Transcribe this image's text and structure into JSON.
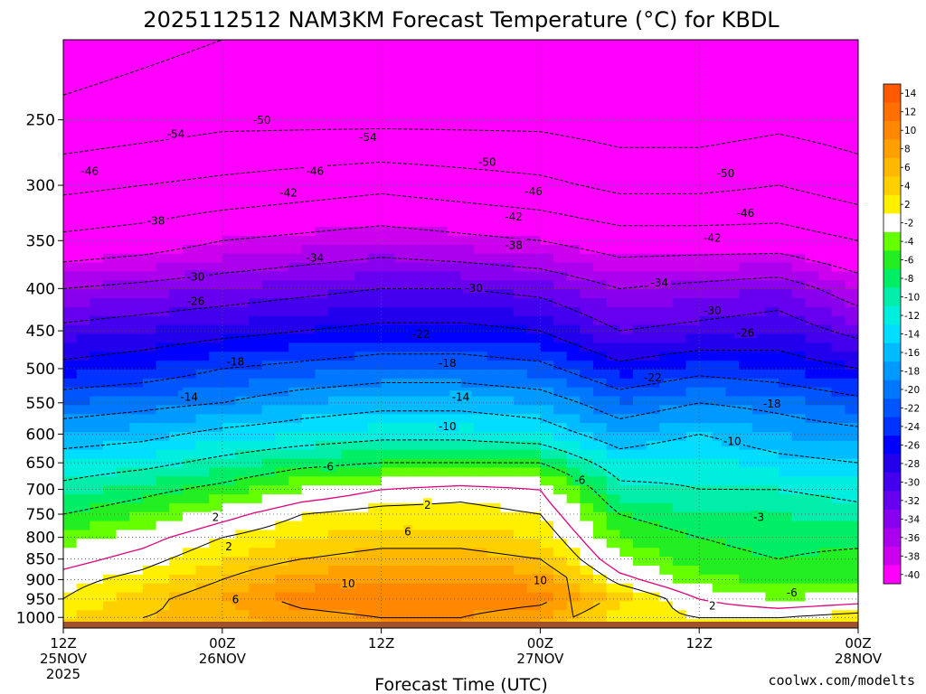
{
  "chart_data": {
    "type": "heatmap",
    "title": "2025112512 NAM3KM Forecast Temperature (°C) for KBDL",
    "xlabel": "Forecast Time (UTC)",
    "ylabel": "",
    "x_range_hours": [
      0,
      60
    ],
    "y_range_hpa": [
      1030,
      200
    ],
    "y_ticks": [
      250,
      300,
      350,
      400,
      450,
      500,
      550,
      600,
      650,
      700,
      750,
      800,
      850,
      900,
      950,
      1000
    ],
    "x_ticks": [
      {
        "hour": 0,
        "lines": [
          "12Z",
          "25NOV",
          "2025"
        ]
      },
      {
        "hour": 12,
        "lines": [
          "00Z",
          "26NOV"
        ]
      },
      {
        "hour": 24,
        "lines": [
          "12Z",
          ""
        ]
      },
      {
        "hour": 36,
        "lines": [
          "00Z",
          "27NOV"
        ]
      },
      {
        "hour": 48,
        "lines": [
          "12Z",
          ""
        ]
      },
      {
        "hour": 60,
        "lines": [
          "00Z",
          "28NOV"
        ]
      }
    ],
    "colorbar_labels": [
      "14",
      "12",
      "10",
      "8",
      "6",
      "4",
      "2",
      "-2",
      "-4",
      "-6",
      "-8",
      "-10",
      "-12",
      "-14",
      "-16",
      "-18",
      "-20",
      "-22",
      "-24",
      "-26",
      "-28",
      "-30",
      "-32",
      "-34",
      "-36",
      "-38",
      "-40"
    ],
    "colorbar_colors": [
      "#FF5A00",
      "#FF7000",
      "#FF8800",
      "#FFA000",
      "#FFB800",
      "#FFD000",
      "#FFF000",
      "#FFFFFF",
      "#66FF00",
      "#22EE22",
      "#00EE66",
      "#00EEAA",
      "#00EEDD",
      "#00DDFF",
      "#00BBFF",
      "#0099FF",
      "#0077FF",
      "#0055FF",
      "#0033FF",
      "#0000FF",
      "#2200EE",
      "#4400EE",
      "#6600EE",
      "#8800EE",
      "#AA00EE",
      "#CC00EE",
      "#FF00FF"
    ],
    "levels": [
      1000,
      950,
      900,
      850,
      800,
      750,
      700,
      650,
      600,
      550,
      500,
      450,
      400,
      350,
      300,
      250,
      200
    ],
    "temperature_at_hours": {
      "hours": [
        0,
        6,
        12,
        18,
        24,
        30,
        36,
        42,
        48,
        54,
        60
      ],
      "profiles": [
        [
          4,
          2,
          1,
          -1,
          -3,
          -6,
          -9,
          -12,
          -16,
          -20,
          -25,
          -29,
          -34,
          -41,
          -47,
          -53,
          -56
        ],
        [
          6,
          5,
          3,
          1,
          -1,
          -4,
          -7,
          -11,
          -15,
          -19,
          -24,
          -28,
          -33,
          -40,
          -46,
          -52,
          -55
        ],
        [
          7,
          8,
          6,
          4,
          2,
          -1,
          -5,
          -9,
          -13,
          -18,
          -22,
          -27,
          -32,
          -38,
          -45,
          -51,
          -54
        ],
        [
          9,
          11,
          9,
          6,
          4,
          2,
          -2,
          -7,
          -12,
          -16,
          -21,
          -26,
          -31,
          -37,
          -44,
          -51,
          -54
        ],
        [
          10,
          12,
          10,
          7,
          5,
          3,
          0,
          -6,
          -11,
          -15,
          -20,
          -25,
          -30,
          -36,
          -43,
          -51,
          -53
        ],
        [
          10,
          12,
          10,
          7,
          5,
          3,
          1,
          -6,
          -11,
          -15,
          -20,
          -25,
          -30,
          -37,
          -44,
          -51,
          -53
        ],
        [
          8,
          11,
          9,
          6,
          4,
          2,
          0,
          -6,
          -12,
          -16,
          -21,
          -26,
          -31,
          -38,
          -45,
          -51,
          -53
        ],
        [
          3,
          5,
          1,
          -2,
          -4,
          -6,
          -9,
          -12,
          -16,
          -20,
          -25,
          -30,
          -34,
          -40,
          -47,
          -52,
          -54
        ],
        [
          2,
          0,
          -3,
          -5,
          -6,
          -8,
          -10,
          -11,
          -14,
          -18,
          -23,
          -29,
          -33,
          -40,
          -47,
          -52,
          -53
        ],
        [
          2,
          -2,
          -5,
          -6,
          -7,
          -8,
          -10,
          -13,
          -16,
          -19,
          -24,
          -28,
          -32,
          -40,
          -46,
          -51,
          -52
        ],
        [
          3,
          -1,
          -4,
          -5,
          -7,
          -9,
          -11,
          -14,
          -17,
          -21,
          -26,
          -31,
          -36,
          -42,
          -48,
          -52,
          -53
        ]
      ]
    },
    "contour_labels": [
      {
        "text": "-54",
        "hour": 8.5,
        "hpa": 260
      },
      {
        "text": "-50",
        "hour": 15,
        "hpa": 250
      },
      {
        "text": "-54",
        "hour": 23,
        "hpa": 262
      },
      {
        "text": "-50",
        "hour": 32,
        "hpa": 281
      },
      {
        "text": "-50",
        "hour": 50,
        "hpa": 290
      },
      {
        "text": "-46",
        "hour": 2,
        "hpa": 288
      },
      {
        "text": "-46",
        "hour": 19,
        "hpa": 288
      },
      {
        "text": "-46",
        "hour": 35.5,
        "hpa": 305
      },
      {
        "text": "-46",
        "hour": 51.5,
        "hpa": 324
      },
      {
        "text": "-42",
        "hour": 17,
        "hpa": 306
      },
      {
        "text": "-42",
        "hour": 34,
        "hpa": 327
      },
      {
        "text": "-42",
        "hour": 49,
        "hpa": 347
      },
      {
        "text": "-38",
        "hour": 7,
        "hpa": 331
      },
      {
        "text": "-38",
        "hour": 34,
        "hpa": 354
      },
      {
        "text": "-34",
        "hour": 19,
        "hpa": 367
      },
      {
        "text": "-34",
        "hour": 45,
        "hpa": 393
      },
      {
        "text": "-30",
        "hour": 10,
        "hpa": 387
      },
      {
        "text": "-30",
        "hour": 31,
        "hpa": 399
      },
      {
        "text": "-30",
        "hour": 49,
        "hpa": 425
      },
      {
        "text": "-26",
        "hour": 10,
        "hpa": 414
      },
      {
        "text": "-26",
        "hour": 51.5,
        "hpa": 452
      },
      {
        "text": "-22",
        "hour": 27,
        "hpa": 454
      },
      {
        "text": "-22",
        "hour": 44.5,
        "hpa": 512
      },
      {
        "text": "-18",
        "hour": 13,
        "hpa": 490
      },
      {
        "text": "-18",
        "hour": 29,
        "hpa": 492
      },
      {
        "text": "-18",
        "hour": 53.5,
        "hpa": 551
      },
      {
        "text": "-14",
        "hour": 9.5,
        "hpa": 541
      },
      {
        "text": "-14",
        "hour": 30,
        "hpa": 541
      },
      {
        "text": "-10",
        "hour": 29,
        "hpa": 587
      },
      {
        "text": "-10",
        "hour": 50.5,
        "hpa": 612
      },
      {
        "text": "-6",
        "hour": 20,
        "hpa": 656
      },
      {
        "text": "-6",
        "hour": 39,
        "hpa": 682
      },
      {
        "text": "-6",
        "hour": 55,
        "hpa": 932
      },
      {
        "text": "-3",
        "hour": 52.5,
        "hpa": 756
      },
      {
        "text": "2",
        "hour": 11.5,
        "hpa": 756
      },
      {
        "text": "2",
        "hour": 27.5,
        "hpa": 730
      },
      {
        "text": "2",
        "hour": 12.5,
        "hpa": 820
      },
      {
        "text": "2",
        "hour": 49,
        "hpa": 967
      },
      {
        "text": "6",
        "hour": 26,
        "hpa": 787
      },
      {
        "text": "6",
        "hour": 13,
        "hpa": 950
      },
      {
        "text": "10",
        "hour": 21.5,
        "hpa": 909
      },
      {
        "text": "10",
        "hour": 36,
        "hpa": 901
      }
    ]
  },
  "watermark": "coolwx.com/modelts",
  "colors": {
    "ground": "#A0522D",
    "freezing_line": "#E0007F",
    "background": "#FFFFFF"
  }
}
